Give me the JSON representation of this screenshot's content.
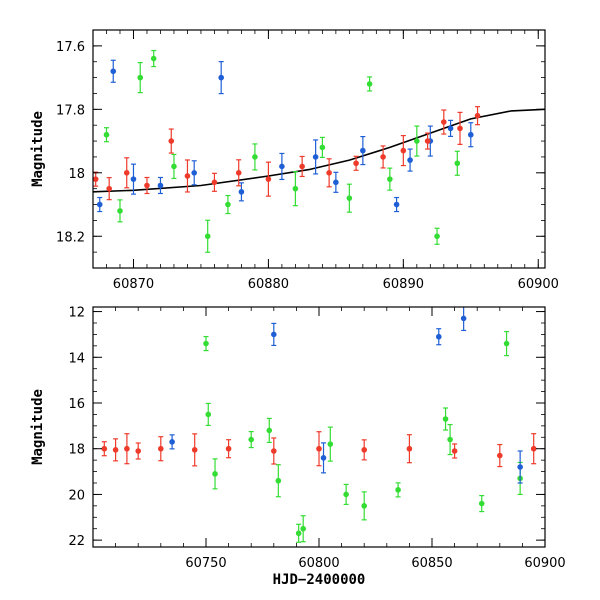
{
  "colors": {
    "green": "#33dd33",
    "blue": "#1f5fd6",
    "red": "#ee3a2a",
    "model": "#000000"
  },
  "chart_data": [
    {
      "type": "scatter",
      "title": "",
      "xlabel": "",
      "ylabel": "Magnitude",
      "xlim": [
        60867,
        60900.5
      ],
      "ylim": [
        18.3,
        17.55
      ],
      "xticks": [
        60870,
        60880,
        60890,
        60900
      ],
      "xtick_labels": [
        "60870",
        "60880",
        "60890",
        "60900"
      ],
      "yticks": [
        17.6,
        17.8,
        18,
        18.2
      ],
      "ytick_labels": [
        "17.6",
        "17.8",
        "18",
        "18.2"
      ],
      "model_curve": {
        "x": [
          60867,
          60870,
          60875,
          60880,
          60883,
          60886,
          60889,
          60892,
          60895,
          60898,
          60900.5
        ],
        "y": [
          18.06,
          18.055,
          18.04,
          18.01,
          17.99,
          17.96,
          17.92,
          17.875,
          17.83,
          17.805,
          17.8
        ]
      },
      "series": [
        {
          "color": "green",
          "x": [
            60868,
            60869,
            60870.5,
            60871.5,
            60873,
            60875.5,
            60877,
            60879,
            60882,
            60884,
            60886,
            60887.5,
            60889,
            60891,
            60892.5,
            60894
          ],
          "y": [
            17.88,
            18.12,
            17.7,
            17.64,
            17.98,
            18.2,
            18.1,
            17.95,
            18.05,
            17.92,
            18.08,
            17.72,
            18.02,
            17.9,
            18.2,
            17.97
          ]
        },
        {
          "color": "blue",
          "x": [
            60867.5,
            60868.5,
            60870,
            60872,
            60874.5,
            60876.5,
            60878,
            60881,
            60883.5,
            60885,
            60887,
            60889.5,
            60890.5,
            60892,
            60893.5,
            60895
          ],
          "y": [
            18.1,
            17.68,
            18.02,
            18.04,
            18.0,
            17.7,
            18.06,
            17.98,
            17.95,
            18.03,
            17.93,
            18.1,
            17.96,
            17.9,
            17.86,
            17.88
          ]
        },
        {
          "color": "red",
          "x": [
            60867.2,
            60868.2,
            60869.5,
            60871,
            60872.8,
            60874,
            60876,
            60877.8,
            60880,
            60882.5,
            60884.5,
            60886.5,
            60888.5,
            60890,
            60891.8,
            60893,
            60894.2,
            60895.5
          ],
          "y": [
            18.02,
            18.05,
            18.0,
            18.04,
            17.9,
            18.01,
            18.03,
            18.0,
            18.02,
            17.98,
            18.0,
            17.97,
            17.95,
            17.93,
            17.9,
            17.84,
            17.86,
            17.82
          ]
        }
      ]
    },
    {
      "type": "scatter",
      "title": "",
      "xlabel": "HJD−2400000",
      "ylabel": "Magnitude",
      "xlim": [
        60700,
        60900
      ],
      "ylim": [
        22.3,
        11.8
      ],
      "xticks": [
        60750,
        60800,
        60850,
        60900
      ],
      "xtick_labels": [
        "60750",
        "60800",
        "60850",
        "60900"
      ],
      "yticks": [
        12,
        14,
        16,
        18,
        20,
        22
      ],
      "ytick_labels": [
        "12",
        "14",
        "16",
        "18",
        "20",
        "22"
      ],
      "series": [
        {
          "color": "green",
          "x": [
            60750,
            60751,
            60754,
            60770,
            60778,
            60782,
            60791,
            60793,
            60805,
            60812,
            60820,
            60835,
            60856,
            60858,
            60872,
            60883,
            60889
          ],
          "y": [
            13.4,
            16.5,
            19.1,
            17.6,
            17.2,
            19.4,
            21.7,
            21.5,
            17.8,
            20.0,
            20.5,
            19.8,
            16.7,
            17.6,
            20.4,
            13.4,
            19.3
          ]
        },
        {
          "color": "blue",
          "x": [
            60735,
            60780,
            60802,
            60853,
            60864,
            60889
          ],
          "y": [
            17.7,
            13.0,
            18.4,
            13.1,
            12.3,
            18.8
          ]
        },
        {
          "color": "red",
          "x": [
            60705,
            60710,
            60715,
            60720,
            60730,
            60745,
            60760,
            60780,
            60800,
            60820,
            60840,
            60860,
            60880,
            60895
          ],
          "y": [
            18.0,
            18.05,
            18.0,
            18.1,
            18.0,
            18.05,
            18.0,
            18.1,
            18.0,
            18.05,
            18.0,
            18.1,
            18.3,
            18.0
          ]
        }
      ]
    }
  ]
}
